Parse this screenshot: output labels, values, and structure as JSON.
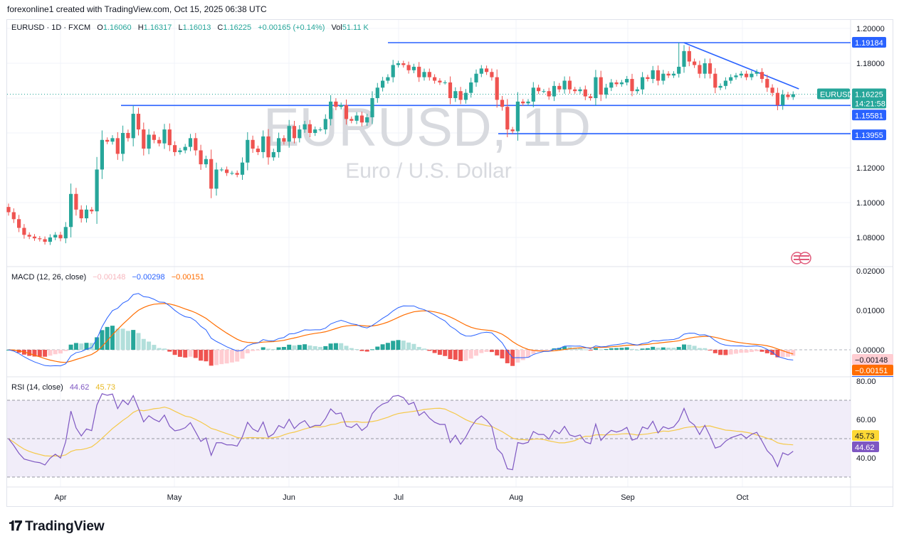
{
  "credit": "forexonline1 created with TradingView.com, Oct 15, 2025 06:38 UTC",
  "header": {
    "symbol": "EURUSD · 1D · FXCM",
    "open_label": "O",
    "open": "1.16060",
    "high_label": "H",
    "high": "1.16317",
    "low_label": "L",
    "low": "1.16013",
    "close_label": "C",
    "close": "1.16225",
    "change": "+0.00165 (+0.14%)",
    "vol_label": "Vol",
    "vol": "51.11 K"
  },
  "watermark": {
    "title": "EURUSD, 1D",
    "subtitle": "Euro / U.S. Dollar"
  },
  "colors": {
    "up": "#26a69a",
    "down": "#ef5350",
    "line": "#2962ff",
    "macd": "#2962ff",
    "signal": "#ff6d00",
    "rsi": "#7e57c2",
    "rsi_ma": "#f5c94a"
  },
  "price_axis": {
    "ticks": [
      "1.20000",
      "1.18000",
      "1.12000",
      "1.10000",
      "1.08000"
    ],
    "badges": {
      "level_high": "1.19184",
      "symbol": "EURUSD",
      "last": "1.16225",
      "countdown": "14:21:58",
      "level_mid": "1.15581",
      "level_low": "1.13955"
    }
  },
  "macd": {
    "title": "MACD (12, 26, close)",
    "hist": "−0.00148",
    "macd": "−0.00298",
    "signal": "−0.00151",
    "ticks": [
      "0.02000",
      "0.01000",
      "0.00000"
    ],
    "badges": {
      "hist": "−0.00148",
      "signal": "−0.00151",
      "macd": "−0.00298"
    }
  },
  "rsi": {
    "title": "RSI (14, close)",
    "rsi": "44.62",
    "ma": "45.73",
    "ticks": [
      "80.00",
      "60.00",
      "40.00"
    ],
    "badges": {
      "ma": "45.73",
      "rsi": "44.62"
    }
  },
  "time_axis": [
    "Apr",
    "May",
    "Jun",
    "Jul",
    "Aug",
    "Sep",
    "Oct"
  ],
  "brand": "TradingView",
  "chart_data": {
    "type": "candlestick",
    "symbol": "EURUSD",
    "interval": "1D",
    "start": "2025-03-18",
    "end": "2025-10-15",
    "ylim": [
      1.065,
      1.205
    ],
    "grid": true,
    "close": [
      1.0945,
      1.0905,
      1.0855,
      1.0815,
      1.0805,
      1.0795,
      1.079,
      1.0775,
      1.08,
      1.0815,
      1.0795,
      1.086,
      1.105,
      1.096,
      1.091,
      1.096,
      1.095,
      1.119,
      1.136,
      1.135,
      1.137,
      1.128,
      1.14,
      1.137,
      1.151,
      1.142,
      1.131,
      1.139,
      1.136,
      1.134,
      1.142,
      1.133,
      1.129,
      1.13,
      1.132,
      1.137,
      1.13,
      1.122,
      1.125,
      1.108,
      1.119,
      1.119,
      1.117,
      1.117,
      1.116,
      1.123,
      1.136,
      1.131,
      1.129,
      1.138,
      1.126,
      1.129,
      1.137,
      1.135,
      1.144,
      1.137,
      1.142,
      1.145,
      1.14,
      1.142,
      1.142,
      1.148,
      1.158,
      1.155,
      1.156,
      1.148,
      1.147,
      1.15,
      1.146,
      1.149,
      1.16,
      1.166,
      1.17,
      1.172,
      1.179,
      1.18,
      1.179,
      1.176,
      1.178,
      1.172,
      1.175,
      1.172,
      1.17,
      1.169,
      1.169,
      1.16,
      1.164,
      1.159,
      1.163,
      1.169,
      1.174,
      1.177,
      1.175,
      1.172,
      1.159,
      1.155,
      1.142,
      1.141,
      1.158,
      1.157,
      1.158,
      1.166,
      1.164,
      1.164,
      1.161,
      1.167,
      1.165,
      1.17,
      1.165,
      1.164,
      1.165,
      1.161,
      1.16,
      1.172,
      1.162,
      1.166,
      1.169,
      1.168,
      1.169,
      1.171,
      1.164,
      1.165,
      1.172,
      1.171,
      1.176,
      1.17,
      1.174,
      1.173,
      1.174,
      1.178,
      1.187,
      1.181,
      1.179,
      1.174,
      1.18,
      1.174,
      1.166,
      1.167,
      1.17,
      1.172,
      1.173,
      1.174,
      1.172,
      1.174,
      1.175,
      1.171,
      1.166,
      1.163,
      1.156,
      1.162,
      1.1606,
      1.16225
    ],
    "horizontal_levels": [
      1.19184,
      1.15581,
      1.13955
    ],
    "trendline": [
      {
        "date": "2025-09-17",
        "price": 1.1918
      },
      {
        "date": "2025-10-15",
        "price": 1.1653
      }
    ],
    "macd": {
      "fast": 12,
      "slow": 26,
      "ylim": [
        -0.008,
        0.022
      ]
    },
    "rsi": {
      "length": 14,
      "ylim": [
        25,
        82
      ],
      "bands": [
        70,
        50,
        30
      ]
    }
  }
}
